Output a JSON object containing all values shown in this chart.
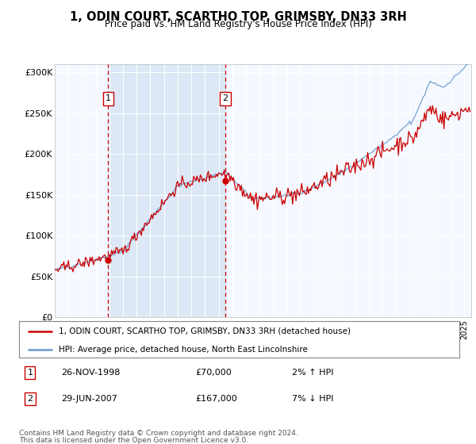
{
  "title": "1, ODIN COURT, SCARTHO TOP, GRIMSBY, DN33 3RH",
  "subtitle": "Price paid vs. HM Land Registry's House Price Index (HPI)",
  "legend_line1": "1, ODIN COURT, SCARTHO TOP, GRIMSBY, DN33 3RH (detached house)",
  "legend_line2": "HPI: Average price, detached house, North East Lincolnshire",
  "footer1": "Contains HM Land Registry data © Crown copyright and database right 2024.",
  "footer2": "This data is licensed under the Open Government Licence v3.0.",
  "sale1_label": "1",
  "sale1_date": "26-NOV-1998",
  "sale1_price": "£70,000",
  "sale1_hpi": "2% ↑ HPI",
  "sale1_year": 1998.92,
  "sale1_value": 70000,
  "sale2_label": "2",
  "sale2_date": "29-JUN-2007",
  "sale2_price": "£167,000",
  "sale2_hpi": "7% ↓ HPI",
  "sale2_year": 2007.5,
  "sale2_value": 167000,
  "hpi_color": "#6699cc",
  "price_color": "#cc0000",
  "dashed_color": "#cc0000",
  "shade_color": "#dce8f5",
  "background_color": "#ffffff",
  "plot_bg": "#f5f8ff",
  "ylim": [
    0,
    310000
  ],
  "yticks": [
    0,
    50000,
    100000,
    150000,
    200000,
    250000,
    300000
  ],
  "ytick_labels": [
    "£0",
    "£50K",
    "£100K",
    "£150K",
    "£200K",
    "£250K",
    "£300K"
  ]
}
